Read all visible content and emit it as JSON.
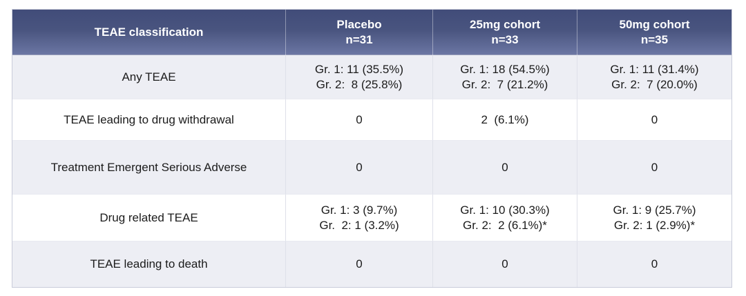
{
  "colors": {
    "header_gradient_top": "#414C79",
    "header_gradient_bottom": "#6B76A3",
    "header_text": "#FFFFFF",
    "row_alt_bg": "#EDEEF4",
    "row_bg": "#FFFFFF",
    "body_text": "#1B1B1B",
    "grid_line": "#DEE0E9"
  },
  "table": {
    "header": {
      "classification": "TEAE classification",
      "groups": [
        {
          "name": "Placebo",
          "n": "n=31"
        },
        {
          "name": "25mg cohort",
          "n": "n=33"
        },
        {
          "name": "50mg cohort",
          "n": "n=35"
        }
      ]
    },
    "rows": [
      {
        "label": "Any TEAE",
        "cells": [
          {
            "l1": "Gr. 1: 11 (35.5%)",
            "l2": "Gr. 2:  8 (25.8%)"
          },
          {
            "l1": "Gr. 1: 18 (54.5%)",
            "l2": "Gr. 2:  7 (21.2%)"
          },
          {
            "l1": "Gr. 1: 11 (31.4%)",
            "l2": "Gr. 2:  7 (20.0%)"
          }
        ]
      },
      {
        "label": "TEAE leading to drug withdrawal",
        "cells": [
          {
            "l1": "0"
          },
          {
            "l1": "2  (6.1%)"
          },
          {
            "l1": "0"
          }
        ]
      },
      {
        "label": "Treatment Emergent Serious Adverse",
        "cells": [
          {
            "l1": "0"
          },
          {
            "l1": "0"
          },
          {
            "l1": "0"
          }
        ]
      },
      {
        "label": "Drug related TEAE",
        "cells": [
          {
            "l1": "Gr. 1: 3 (9.7%)",
            "l2": "Gr.  2: 1 (3.2%)"
          },
          {
            "l1": "Gr. 1: 10 (30.3%)",
            "l2": "Gr. 2:  2 (6.1%)*"
          },
          {
            "l1": "Gr. 1: 9 (25.7%)",
            "l2": "Gr. 2: 1 (2.9%)*"
          }
        ]
      },
      {
        "label": "TEAE leading to death",
        "cells": [
          {
            "l1": "0"
          },
          {
            "l1": "0"
          },
          {
            "l1": "0"
          }
        ]
      }
    ]
  },
  "chart_data": {
    "type": "table",
    "title": "TEAE classification",
    "columns": [
      "TEAE classification",
      "Placebo n=31",
      "25mg cohort n=33",
      "50mg cohort n=35"
    ],
    "rows": [
      [
        "Any TEAE",
        "Gr. 1: 11 (35.5%) / Gr. 2: 8 (25.8%)",
        "Gr. 1: 18 (54.5%) / Gr. 2: 7 (21.2%)",
        "Gr. 1: 11 (31.4%) / Gr. 2: 7 (20.0%)"
      ],
      [
        "TEAE leading to drug withdrawal",
        "0",
        "2 (6.1%)",
        "0"
      ],
      [
        "Treatment Emergent Serious Adverse",
        "0",
        "0",
        "0"
      ],
      [
        "Drug related TEAE",
        "Gr. 1: 3 (9.7%) / Gr. 2: 1 (3.2%)",
        "Gr. 1: 10 (30.3%) / Gr. 2: 2 (6.1%)*",
        "Gr. 1: 9 (25.7%) / Gr. 2: 1 (2.9%)*"
      ],
      [
        "TEAE leading to death",
        "0",
        "0",
        "0"
      ]
    ],
    "cohort_sizes": {
      "placebo": 31,
      "cohort_25mg": 33,
      "cohort_50mg": 35
    }
  }
}
